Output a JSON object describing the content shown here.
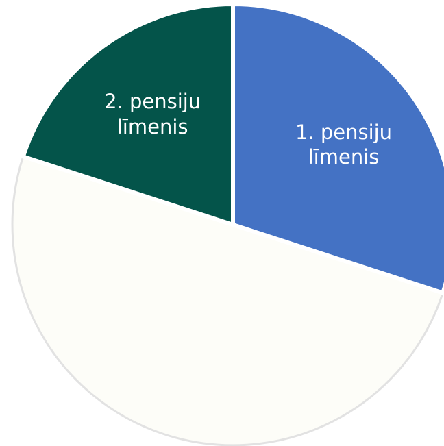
{
  "chart_data": {
    "type": "pie",
    "categories": [
      "1. pensiju līmenis",
      null,
      "2. pensiju līmenis"
    ],
    "values": [
      30,
      50,
      20
    ],
    "colors": [
      "#4472c4",
      "#fdfdf8",
      "#04544a"
    ]
  }
}
